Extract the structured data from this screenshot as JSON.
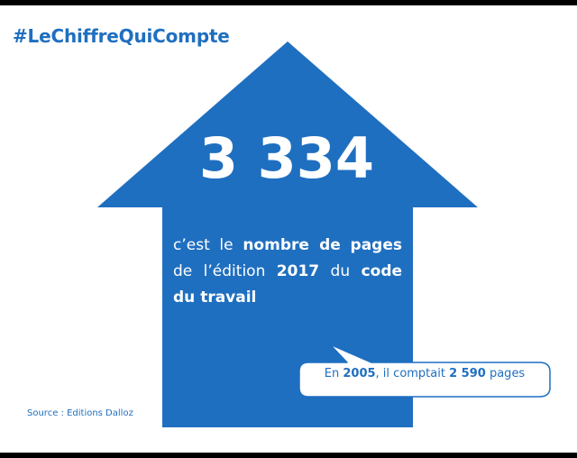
{
  "hashtag": "#LeChiffreQuiCompte",
  "headline_number": "3 334",
  "caption": {
    "w1": "c’est le",
    "w2": "nombre de",
    "w3": "pages",
    "w4": "de l’édition",
    "w5": "2017",
    "w6": "du",
    "w7": "code du travail"
  },
  "bubble": {
    "p1": "En",
    "year": "2005",
    "p2": ", il comptait",
    "count": "2 590",
    "p3": "pages"
  },
  "source": "Source : Editions Dalloz",
  "colors": {
    "accent": "#1f6fc0",
    "arrow_fill": "#1f6fc0",
    "background": "#ffffff",
    "frame": "#000000"
  },
  "icons": [
    "up-arrow-shape",
    "speech-bubble-shape"
  ]
}
